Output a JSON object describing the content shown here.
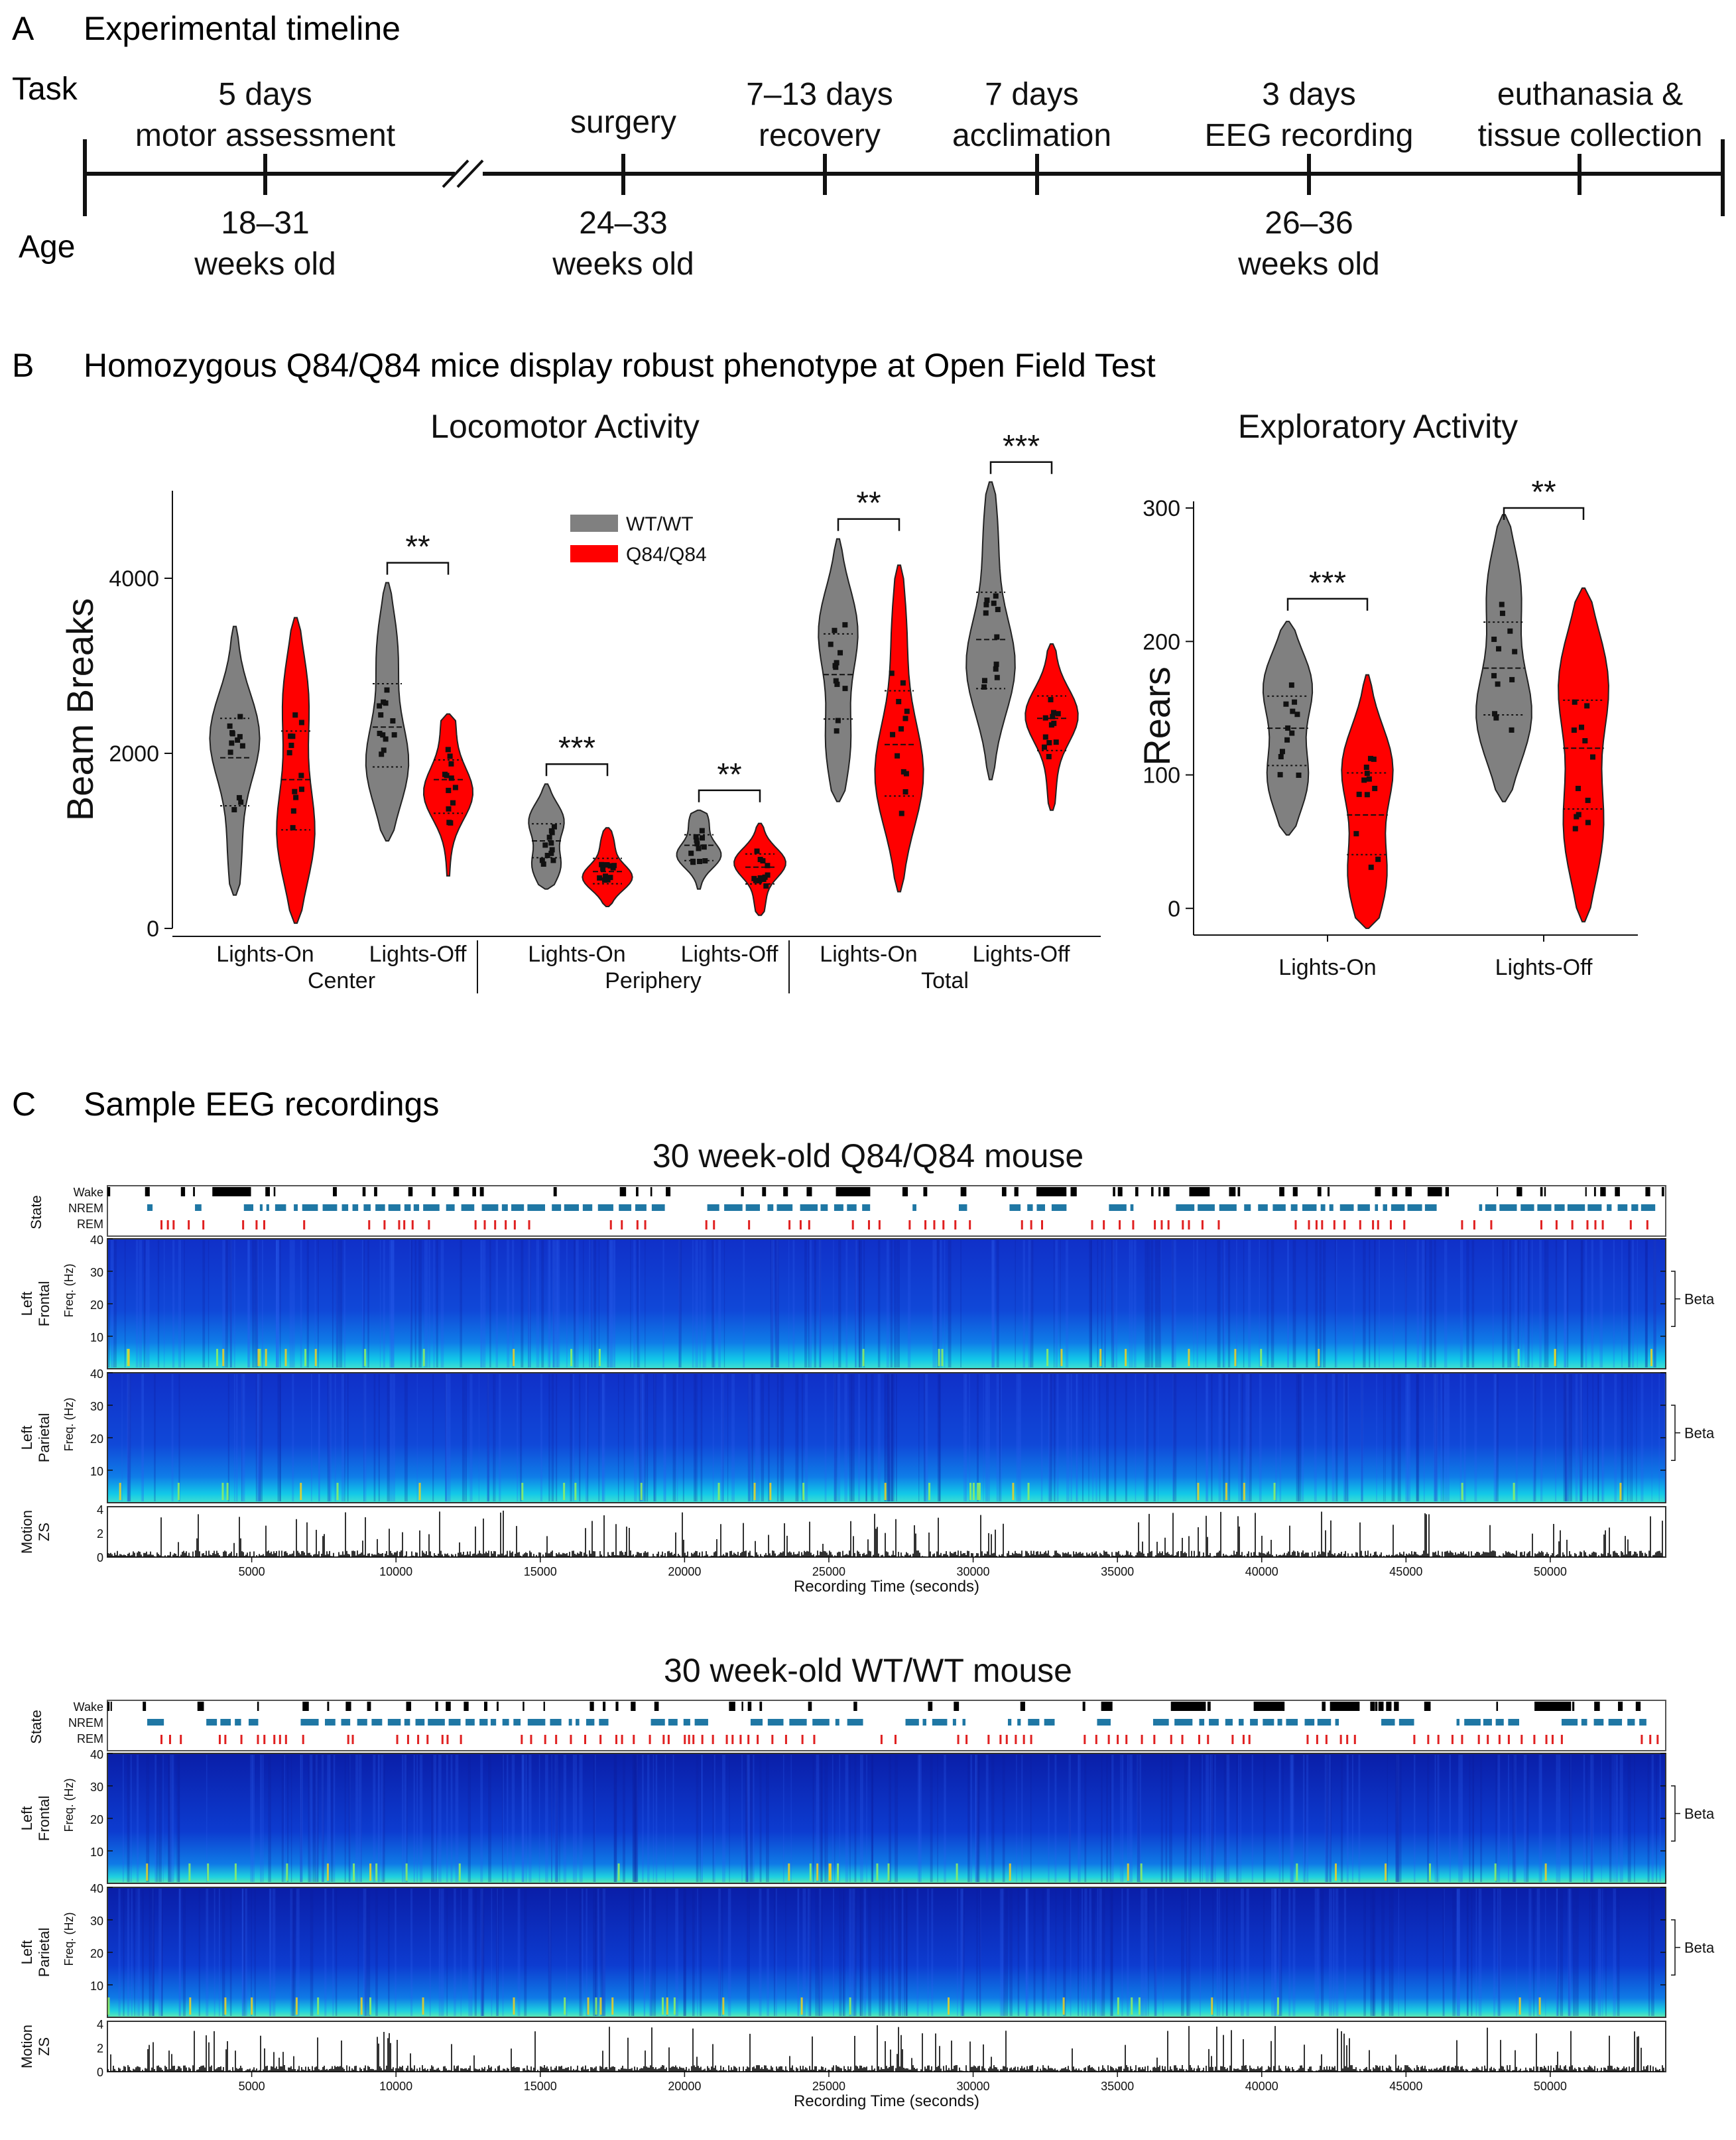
{
  "panelA": {
    "letter": "A",
    "title": "Experimental timeline",
    "row_task": "Task",
    "row_age": "Age",
    "task_labels": [
      [
        "5 days",
        "motor assessment"
      ],
      [
        "surgery"
      ],
      [
        "7–13 days",
        "recovery"
      ],
      [
        "7 days",
        "acclimation"
      ],
      [
        "3 days",
        "EEG recording"
      ],
      [
        "euthanasia &",
        "tissue collection"
      ]
    ],
    "age_labels": [
      [
        "18–31",
        "weeks old"
      ],
      [
        "24–33",
        "weeks old"
      ],
      [
        "26–36",
        "weeks old"
      ]
    ]
  },
  "panelB": {
    "letter": "B",
    "title": "Homozygous Q84/Q84 mice display robust phenotype at Open Field Test",
    "colors": {
      "wt": "#808080",
      "q84": "#ff0000"
    },
    "legend": [
      "WT/WT",
      "Q84/Q84"
    ]
  },
  "panelC": {
    "letter": "C",
    "title": "Sample EEG recordings",
    "recordings": [
      {
        "title": "30 week-old Q84/Q84 mouse"
      },
      {
        "title": "30 week-old WT/WT mouse"
      }
    ],
    "state_label": "State",
    "state_rows": [
      "Wake",
      "NREM",
      "REM"
    ],
    "channels": [
      [
        "Left",
        "Frontal"
      ],
      [
        "Left",
        "Parietal"
      ]
    ],
    "freq_label": "Freq. (Hz)",
    "freq_ticks": [
      10,
      20,
      30,
      40
    ],
    "beta_label": "Beta",
    "motion_label": [
      "Motion",
      "ZS"
    ],
    "motion_ticks": [
      0,
      2,
      4
    ],
    "time_ticks": [
      5000,
      10000,
      15000,
      20000,
      25000,
      30000,
      35000,
      40000,
      45000,
      50000
    ],
    "time_max": 54000,
    "xlabel": "Recording Time (seconds)",
    "colors": {
      "wake": "#000000",
      "nrem": "#1f77a4",
      "rem": "#e02020"
    }
  },
  "chart_data": [
    {
      "type": "violin",
      "title": "Locomotor Activity",
      "ylabel": "Beam Breaks",
      "ylim": [
        0,
        5000
      ],
      "yticks": [
        0,
        2000,
        4000
      ],
      "categories": [
        "Lights-On",
        "Lights-Off",
        "Lights-On",
        "Lights-Off",
        "Lights-On",
        "Lights-Off"
      ],
      "groups": [
        "Center",
        "Periphery",
        "Total"
      ],
      "series": [
        {
          "name": "WT/WT",
          "medians": [
            1950,
            2300,
            1000,
            950,
            2900,
            3300
          ],
          "ranges": [
            [
              380,
              3450
            ],
            [
              1000,
              3950
            ],
            [
              450,
              1650
            ],
            [
              450,
              1350
            ],
            [
              1450,
              4450
            ],
            [
              1700,
              5100
            ]
          ]
        },
        {
          "name": "Q84/Q84",
          "medians": [
            1700,
            1700,
            650,
            700,
            2100,
            2400
          ],
          "ranges": [
            [
              60,
              3550
            ],
            [
              600,
              2450
            ],
            [
              250,
              1150
            ],
            [
              150,
              1200
            ],
            [
              420,
              4150
            ],
            [
              1350,
              3250
            ]
          ]
        }
      ],
      "significance": [
        "",
        "**",
        "***",
        "**",
        "**",
        "***"
      ]
    },
    {
      "type": "violin",
      "title": "Exploratory Activity",
      "ylabel": "Rears",
      "ylim": [
        -20,
        305
      ],
      "yticks": [
        0,
        100,
        200,
        300
      ],
      "categories": [
        "Lights-On",
        "Lights-Off"
      ],
      "series": [
        {
          "name": "WT/WT",
          "medians": [
            135,
            180
          ],
          "ranges": [
            [
              55,
              215
            ],
            [
              80,
              295
            ]
          ]
        },
        {
          "name": "Q84/Q84",
          "medians": [
            70,
            120
          ],
          "ranges": [
            [
              -15,
              175
            ],
            [
              -10,
              240
            ]
          ]
        }
      ],
      "significance": [
        "***",
        "**"
      ]
    }
  ]
}
